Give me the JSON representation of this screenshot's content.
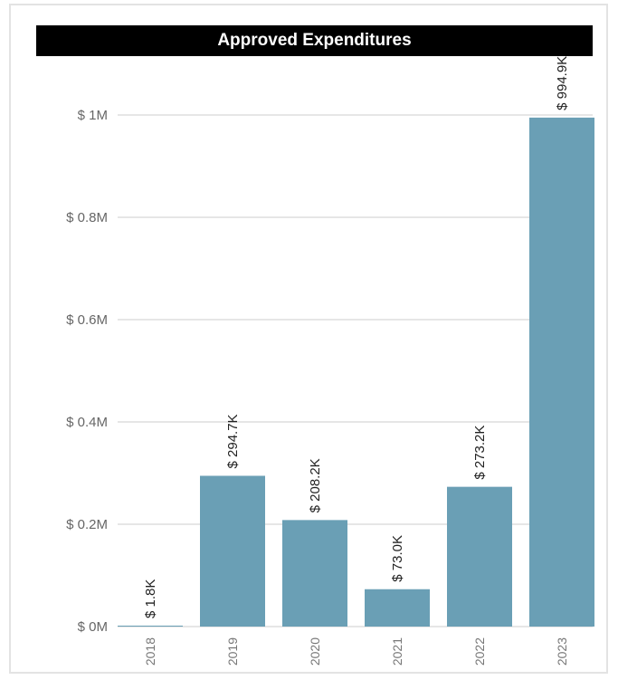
{
  "chart_data": {
    "type": "bar",
    "title": "Approved Expenditures",
    "categories": [
      "2018",
      "2019",
      "2020",
      "2021",
      "2022",
      "2023"
    ],
    "values": [
      1800,
      294700,
      208200,
      73000,
      273200,
      994900
    ],
    "data_labels": [
      "$ 1.8K",
      "$ 294.7K",
      "$ 208.2K",
      "$ 73.0K",
      "$ 273.2K",
      "$ 994.9K"
    ],
    "y_ticks": [
      0,
      200000,
      400000,
      600000,
      800000,
      1000000
    ],
    "y_tick_labels": [
      "$ 0M",
      "$ 0.2M",
      "$ 0.4M",
      "$ 0.6M",
      "$ 0.8M",
      "$ 1M"
    ],
    "ylim": [
      0,
      1000000
    ],
    "xlabel": "",
    "ylabel": "",
    "grid": true,
    "legend": "none",
    "bar_color": "#6a9fb5",
    "title_bar_color": "#000000",
    "title_text_color": "#ffffff",
    "gridline_color": "#e6e6e6"
  }
}
